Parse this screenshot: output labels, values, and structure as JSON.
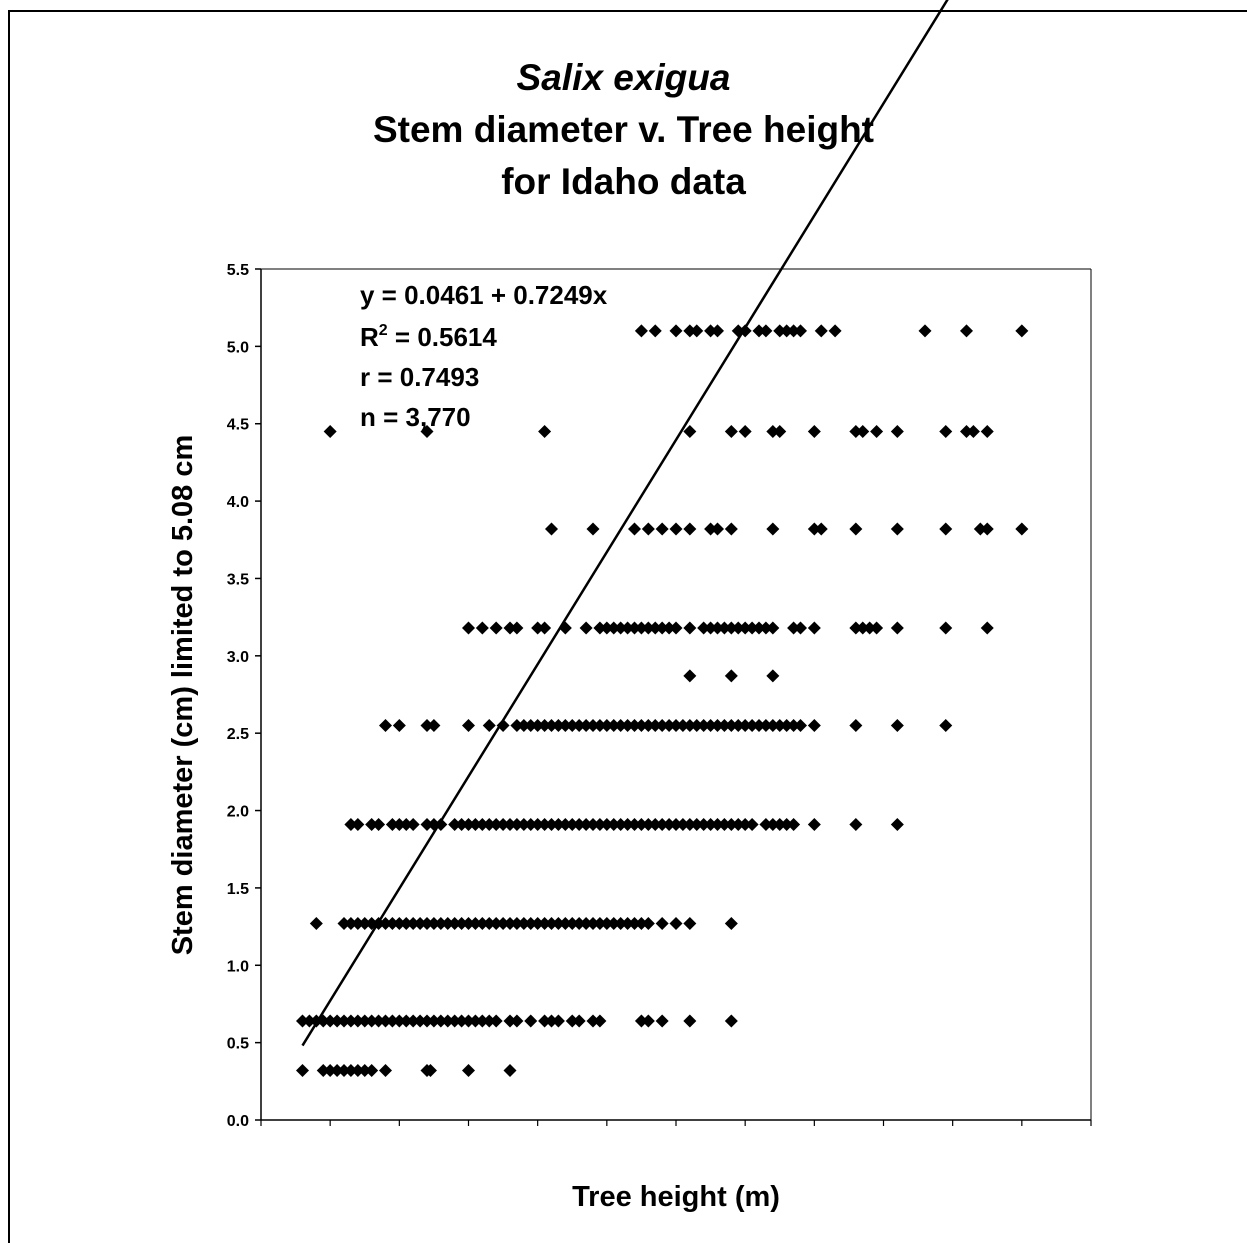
{
  "title": {
    "species": "Salix exigua",
    "line2": "Stem diameter v. Tree height",
    "line3": "for Idaho data"
  },
  "chart_data": {
    "type": "scatter",
    "title": "Salix exigua Stem diameter v. Tree height for Idaho data",
    "xlabel": "Tree height (m)",
    "ylabel": "Stem diameter (cm) limited to 5.08 cm",
    "xlim": [
      0,
      12
    ],
    "ylim": [
      0,
      5.5
    ],
    "yticks": [
      "0.0",
      "0.5",
      "1.0",
      "1.5",
      "2.0",
      "2.5",
      "3.0",
      "3.5",
      "4.0",
      "4.5",
      "5.0",
      "5.5"
    ],
    "x_tick_labels_shown": false,
    "grid": false,
    "legend": "none",
    "marker": "diamond",
    "marker_color": "#000000",
    "regression": {
      "intercept": 0.0461,
      "slope": 0.7249,
      "x_range": [
        0.6,
        11.0
      ],
      "equation_label": "y = 0.0461 + 0.7249x",
      "r2_label_base": "R",
      "r2_label_exp": "2",
      "r2_label_value": " = 0.5614",
      "r_label": "r = 0.7493",
      "n_label": "n = 3,770"
    },
    "levels": [
      {
        "y": 0.32,
        "x": [
          0.6,
          0.9,
          1.0,
          1.1,
          1.2,
          1.3,
          1.4,
          1.5,
          1.6,
          1.8,
          2.4,
          2.45,
          3.0,
          3.6
        ]
      },
      {
        "y": 0.64,
        "x": [
          0.6,
          0.7,
          0.8,
          0.9,
          1.0,
          1.1,
          1.2,
          1.3,
          1.4,
          1.5,
          1.6,
          1.7,
          1.8,
          1.9,
          2.0,
          2.1,
          2.2,
          2.3,
          2.4,
          2.5,
          2.6,
          2.7,
          2.8,
          2.9,
          3.0,
          3.1,
          3.2,
          3.3,
          3.4,
          3.6,
          3.7,
          3.9,
          4.1,
          4.2,
          4.3,
          4.5,
          4.6,
          4.8,
          4.9,
          5.5,
          5.6,
          5.8,
          6.2,
          6.8
        ]
      },
      {
        "y": 1.27,
        "x": [
          0.8,
          1.2,
          1.3,
          1.4,
          1.5,
          1.6,
          1.7,
          1.8,
          1.9,
          2.0,
          2.1,
          2.2,
          2.3,
          2.4,
          2.5,
          2.6,
          2.7,
          2.8,
          2.9,
          3.0,
          3.1,
          3.2,
          3.3,
          3.4,
          3.5,
          3.6,
          3.7,
          3.8,
          3.9,
          4.0,
          4.1,
          4.2,
          4.3,
          4.4,
          4.5,
          4.6,
          4.7,
          4.8,
          4.9,
          5.0,
          5.1,
          5.2,
          5.3,
          5.4,
          5.5,
          5.6,
          5.8,
          6.0,
          6.2,
          6.8
        ]
      },
      {
        "y": 1.91,
        "x": [
          1.3,
          1.4,
          1.6,
          1.7,
          1.9,
          2.0,
          2.1,
          2.2,
          2.4,
          2.5,
          2.6,
          2.8,
          2.9,
          3.0,
          3.1,
          3.2,
          3.3,
          3.4,
          3.5,
          3.6,
          3.7,
          3.8,
          3.9,
          4.0,
          4.1,
          4.2,
          4.3,
          4.4,
          4.5,
          4.6,
          4.7,
          4.8,
          4.9,
          5.0,
          5.1,
          5.2,
          5.3,
          5.4,
          5.5,
          5.6,
          5.7,
          5.8,
          5.9,
          6.0,
          6.1,
          6.2,
          6.3,
          6.4,
          6.5,
          6.6,
          6.7,
          6.8,
          6.9,
          7.0,
          7.1,
          7.3,
          7.4,
          7.5,
          7.6,
          7.7,
          8.0,
          8.6,
          9.2
        ]
      },
      {
        "y": 2.55,
        "x": [
          1.8,
          2.0,
          2.4,
          2.5,
          3.0,
          3.3,
          3.5,
          3.7,
          3.8,
          3.9,
          4.0,
          4.1,
          4.2,
          4.3,
          4.4,
          4.5,
          4.6,
          4.7,
          4.8,
          4.9,
          5.0,
          5.1,
          5.2,
          5.3,
          5.4,
          5.5,
          5.6,
          5.7,
          5.8,
          5.9,
          6.0,
          6.1,
          6.2,
          6.3,
          6.4,
          6.5,
          6.6,
          6.7,
          6.8,
          6.9,
          7.0,
          7.1,
          7.2,
          7.3,
          7.4,
          7.5,
          7.6,
          7.7,
          7.8,
          8.0,
          8.6,
          9.2,
          9.9
        ]
      },
      {
        "y": 2.87,
        "x": [
          6.2,
          6.8,
          7.4
        ]
      },
      {
        "y": 3.18,
        "x": [
          3.0,
          3.2,
          3.4,
          3.6,
          3.7,
          4.0,
          4.1,
          4.4,
          4.7,
          4.9,
          5.0,
          5.1,
          5.2,
          5.3,
          5.4,
          5.5,
          5.6,
          5.7,
          5.8,
          5.9,
          6.0,
          6.2,
          6.4,
          6.5,
          6.6,
          6.7,
          6.8,
          6.9,
          7.0,
          7.1,
          7.2,
          7.3,
          7.4,
          7.7,
          7.8,
          8.0,
          8.6,
          8.7,
          8.8,
          8.9,
          9.2,
          9.9,
          10.5
        ]
      },
      {
        "y": 3.82,
        "x": [
          4.2,
          4.8,
          5.4,
          5.6,
          5.8,
          6.0,
          6.2,
          6.5,
          6.6,
          6.8,
          7.4,
          8.0,
          8.1,
          8.6,
          9.2,
          9.9,
          10.4,
          10.5,
          11.0
        ]
      },
      {
        "y": 4.45,
        "x": [
          1.0,
          2.4,
          4.1,
          6.2,
          6.8,
          7.0,
          7.4,
          7.5,
          8.0,
          8.6,
          8.7,
          8.9,
          9.2,
          9.9,
          10.2,
          10.3,
          10.5
        ]
      },
      {
        "y": 5.1,
        "x": [
          5.5,
          5.7,
          6.0,
          6.2,
          6.3,
          6.5,
          6.6,
          6.9,
          7.0,
          7.2,
          7.3,
          7.5,
          7.6,
          7.7,
          7.8,
          8.1,
          8.3,
          9.6,
          10.2,
          11.0
        ]
      }
    ]
  }
}
